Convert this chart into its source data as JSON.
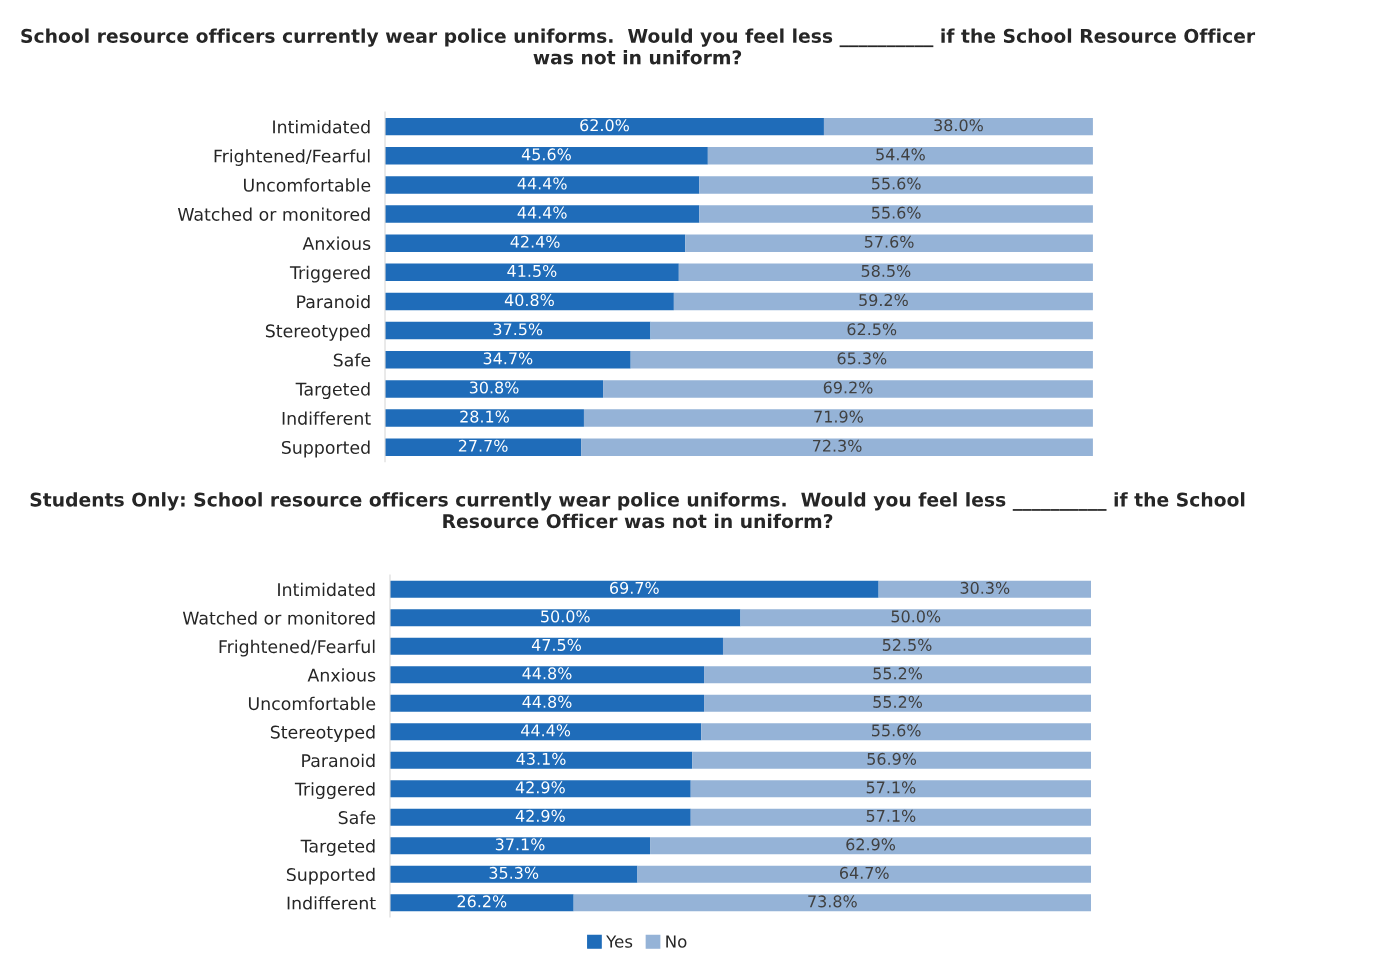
{
  "chart_data": [
    {
      "type": "bar",
      "orientation": "horizontal",
      "stacked": true,
      "legend": "bottom",
      "grid": false,
      "tick_labels": "y",
      "title": "School resource officers currently wear police uniforms.  Would you feel less __________ if the School Resource Officer was not in uniform?",
      "categories": [
        "Intimidated",
        "Frightened/Fearful",
        "Uncomfortable",
        "Watched or monitored",
        "Anxious",
        "Triggered",
        "Paranoid",
        "Stereotyped",
        "Safe",
        "Targeted",
        "Indifferent",
        "Supported"
      ],
      "series": [
        {
          "name": "Yes",
          "color": "#1f6cb9",
          "values": [
            62.0,
            45.6,
            44.4,
            44.4,
            42.4,
            41.5,
            40.8,
            37.5,
            34.7,
            30.8,
            28.1,
            27.7
          ],
          "value_labels": [
            "62.0%",
            "45.6%",
            "44.4%",
            "44.4%",
            "42.4%",
            "41.5%",
            "40.8%",
            "37.5%",
            "34.7%",
            "30.8%",
            "28.1%",
            "27.7%"
          ]
        },
        {
          "name": "No",
          "color": "#95b3d7",
          "values": [
            38.0,
            54.4,
            55.6,
            55.6,
            57.6,
            58.5,
            59.2,
            62.5,
            65.3,
            69.2,
            71.9,
            72.3
          ],
          "value_labels": [
            "38.0%",
            "54.4%",
            "55.6%",
            "55.6%",
            "57.6%",
            "58.5%",
            "59.2%",
            "62.5%",
            "65.3%",
            "69.2%",
            "71.9%",
            "72.3%"
          ]
        }
      ]
    },
    {
      "type": "bar",
      "orientation": "horizontal",
      "stacked": true,
      "grid": false,
      "tick_labels": "y",
      "title": "Students Only: School resource officers currently wear police uniforms.  Would you feel less __________ if the School Resource Officer was not in uniform?",
      "categories": [
        "Intimidated",
        "Watched or monitored",
        "Frightened/Fearful",
        "Anxious",
        "Uncomfortable",
        "Stereotyped",
        "Paranoid",
        "Triggered",
        "Safe",
        "Targeted",
        "Supported",
        "Indifferent"
      ],
      "series": [
        {
          "color": "#1f6cb9",
          "values": [
            69.7,
            50.0,
            47.5,
            44.8,
            44.8,
            44.4,
            43.1,
            42.9,
            42.9,
            37.1,
            35.3,
            26.2
          ],
          "value_labels": [
            "69.7%",
            "50.0%",
            "47.5%",
            "44.8%",
            "44.8%",
            "44.4%",
            "43.1%",
            "42.9%",
            "42.9%",
            "37.1%",
            "35.3%",
            "26.2%"
          ]
        },
        {
          "color": "#95b3d7",
          "values": [
            30.3,
            50.0,
            52.5,
            55.2,
            55.2,
            55.6,
            56.9,
            57.1,
            57.1,
            62.9,
            64.7,
            73.8
          ],
          "value_labels": [
            "30.3%",
            "50.0%",
            "52.5%",
            "55.2%",
            "55.2%",
            "55.6%",
            "56.9%",
            "57.1%",
            "57.1%",
            "62.9%",
            "64.7%",
            "73.8%"
          ]
        }
      ]
    }
  ]
}
